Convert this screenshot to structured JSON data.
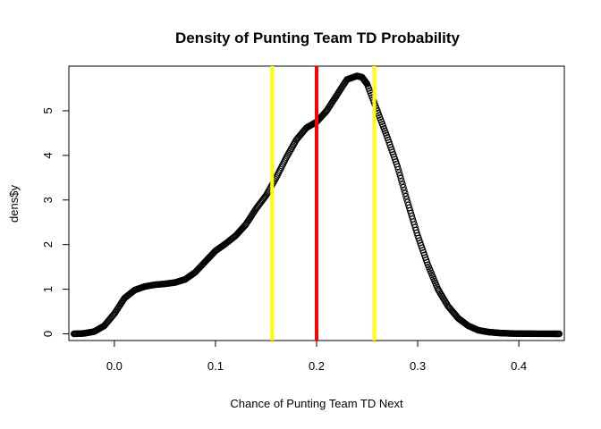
{
  "chart_data": {
    "type": "scatter",
    "title": "Density of Punting Team TD Probability",
    "xlabel": "Chance of Punting Team TD Next",
    "ylabel": "dens$y",
    "xlim": [
      -0.045,
      0.445
    ],
    "ylim": [
      -0.15,
      6.0
    ],
    "x_ticks": [
      0.0,
      0.1,
      0.2,
      0.3,
      0.4
    ],
    "x_tick_labels": [
      "0.0",
      "0.1",
      "0.2",
      "0.3",
      "0.4"
    ],
    "y_ticks": [
      0,
      1,
      2,
      3,
      4,
      5
    ],
    "y_tick_labels": [
      "0",
      "1",
      "2",
      "3",
      "4",
      "5"
    ],
    "marker": "open-circle",
    "point_color": "#000000",
    "series": [
      {
        "x": [
          -0.04,
          -0.03,
          -0.02,
          -0.01,
          0.0,
          0.01,
          0.02,
          0.03,
          0.04,
          0.05,
          0.06,
          0.07,
          0.08,
          0.09,
          0.1,
          0.11,
          0.12,
          0.13,
          0.14,
          0.15,
          0.16,
          0.17,
          0.18,
          0.19,
          0.2,
          0.21,
          0.22,
          0.23,
          0.24,
          0.245,
          0.25,
          0.26,
          0.27,
          0.28,
          0.29,
          0.3,
          0.31,
          0.32,
          0.33,
          0.34,
          0.35,
          0.36,
          0.37,
          0.38,
          0.39,
          0.4,
          0.41,
          0.42,
          0.43,
          0.44
        ],
        "y": [
          0.0,
          0.01,
          0.05,
          0.18,
          0.45,
          0.8,
          0.98,
          1.06,
          1.1,
          1.12,
          1.15,
          1.22,
          1.38,
          1.62,
          1.86,
          2.02,
          2.2,
          2.45,
          2.8,
          3.1,
          3.5,
          3.95,
          4.35,
          4.62,
          4.75,
          5.0,
          5.35,
          5.7,
          5.78,
          5.75,
          5.6,
          5.0,
          4.4,
          3.75,
          2.95,
          2.2,
          1.55,
          1.0,
          0.62,
          0.35,
          0.18,
          0.08,
          0.04,
          0.02,
          0.01,
          0.005,
          0.003,
          0.002,
          0.001,
          0.0
        ]
      }
    ],
    "vertical_lines": [
      {
        "x": 0.156,
        "color": "#FFFF00"
      },
      {
        "x": 0.2,
        "color": "#FF0000"
      },
      {
        "x": 0.257,
        "color": "#FFFF00"
      }
    ]
  }
}
